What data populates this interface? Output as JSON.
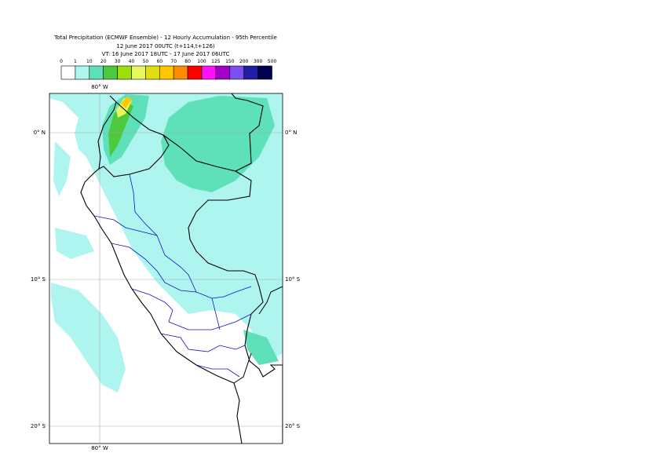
{
  "header": {
    "title": "Total Precipitation (ECMWF Ensemble) - 12 Hourly Accumulation - 95th Percentile",
    "base_time": "12 June 2017 00UTC (t+114,t+126)",
    "valid_time": "VT: 16 June 2017 18UTC - 17 June 2017 06UTC"
  },
  "legend": {
    "labels": [
      "0",
      "1",
      "10",
      "20",
      "30",
      "40",
      "50",
      "60",
      "70",
      "80",
      "100",
      "125",
      "150",
      "200",
      "300",
      "500"
    ],
    "colors": [
      "#ffffff",
      "#aef5f0",
      "#5ee0b8",
      "#4ec83c",
      "#9ade0a",
      "#e8f85c",
      "#dede10",
      "#ffc800",
      "#ff8c00",
      "#ff0000",
      "#ff10ff",
      "#a000c8",
      "#7a50f0",
      "#1e1ea0",
      "#000050"
    ]
  },
  "map": {
    "lon_labels": [
      "80° W"
    ],
    "lat_labels": [
      "0° N",
      "10° S",
      "20° S"
    ]
  }
}
